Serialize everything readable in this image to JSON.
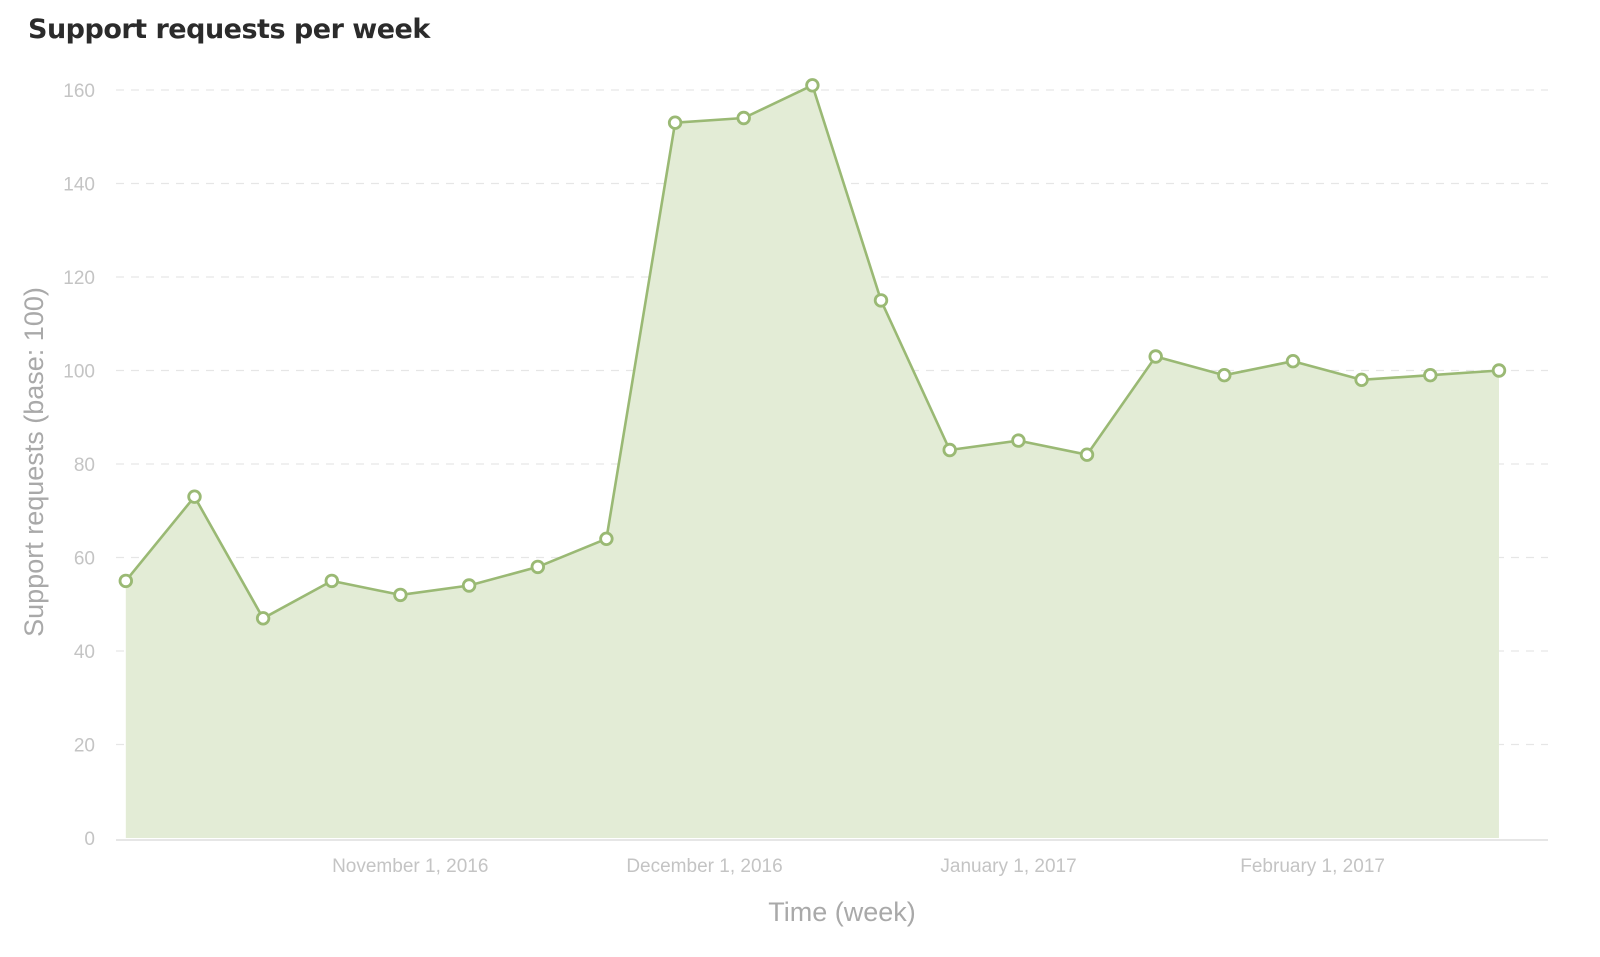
{
  "chart_data": {
    "type": "area",
    "title": "Support requests per week",
    "xlabel": "Time (week)",
    "ylabel": "Support requests (base: 100)",
    "ylim": [
      0,
      160
    ],
    "y_ticks": [
      0,
      20,
      40,
      60,
      80,
      100,
      120,
      140,
      160
    ],
    "x_ticks": [
      {
        "date": "2016-11-01",
        "label": "November 1, 2016"
      },
      {
        "date": "2016-12-01",
        "label": "December 1, 2016"
      },
      {
        "date": "2017-01-01",
        "label": "January 1, 2017"
      },
      {
        "date": "2017-02-01",
        "label": "February 1, 2017"
      }
    ],
    "xlim": [
      "2016-10-02",
      "2017-02-25"
    ],
    "grid": true,
    "color": "#9ab974",
    "fill_color": "#e3ecd6",
    "series": [
      {
        "x": [
          "2016-10-03",
          "2016-10-10",
          "2016-10-17",
          "2016-10-24",
          "2016-10-31",
          "2016-11-07",
          "2016-11-14",
          "2016-11-21",
          "2016-11-28",
          "2016-12-05",
          "2016-12-12",
          "2016-12-19",
          "2016-12-26",
          "2017-01-02",
          "2017-01-09",
          "2017-01-16",
          "2017-01-23",
          "2017-01-30",
          "2017-02-06",
          "2017-02-13",
          "2017-02-20"
        ],
        "values": [
          55,
          73,
          47,
          55,
          52,
          54,
          58,
          64,
          153,
          154,
          161,
          115,
          83,
          85,
          82,
          103,
          99,
          102,
          98,
          99,
          100
        ]
      }
    ]
  }
}
